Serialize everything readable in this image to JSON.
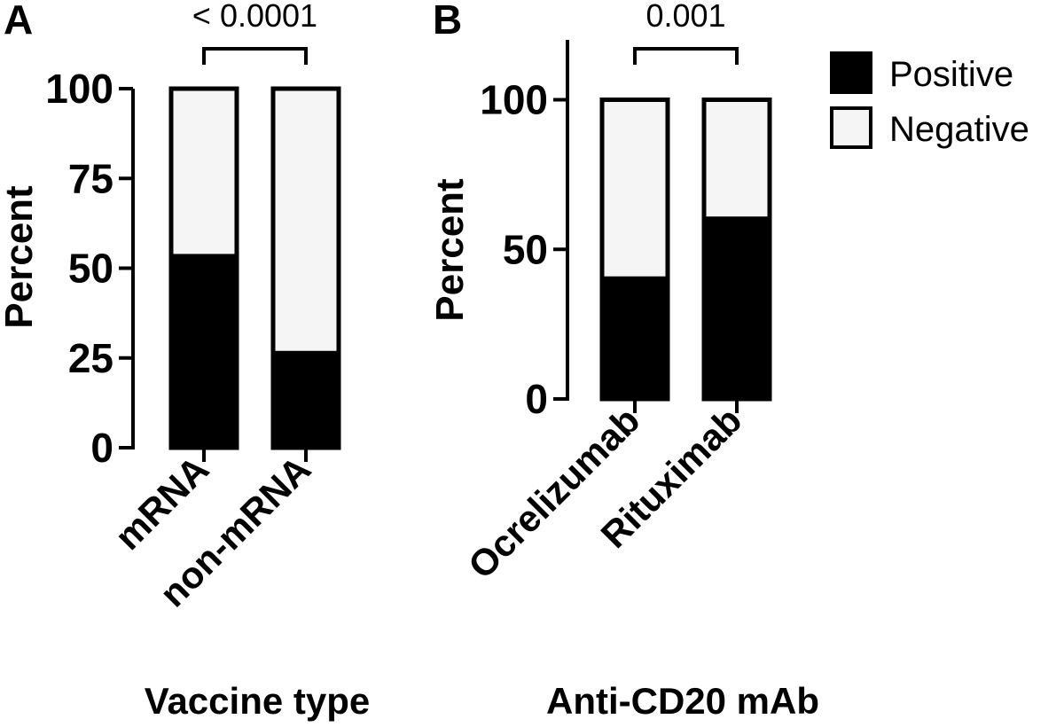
{
  "colors": {
    "positive": "#000000",
    "negative": "#f5f5f5",
    "stroke": "#000000"
  },
  "legend": [
    {
      "label": "Positive",
      "color": "#000000"
    },
    {
      "label": "Negative",
      "color": "#f5f5f5"
    }
  ],
  "chart_data": [
    {
      "panel": "A",
      "type": "bar",
      "stacked": true,
      "categories": [
        "mRNA",
        "non-mRNA"
      ],
      "series": [
        {
          "name": "Positive",
          "values": [
            54,
            27
          ]
        },
        {
          "name": "Negative",
          "values": [
            46,
            73
          ]
        }
      ],
      "ylabel": "Percent",
      "xlabel": "Vaccine type",
      "ylim": [
        0,
        100
      ],
      "yticks": [
        0,
        25,
        50,
        75,
        100
      ],
      "annotation": {
        "text": "< 0.0001",
        "between": [
          0,
          1
        ]
      }
    },
    {
      "panel": "B",
      "type": "bar",
      "stacked": true,
      "categories": [
        "Ocrelizumab",
        "Rituximab"
      ],
      "series": [
        {
          "name": "Positive",
          "values": [
            41,
            61
          ]
        },
        {
          "name": "Negative",
          "values": [
            59,
            39
          ]
        }
      ],
      "ylabel": "Percent",
      "xlabel": "Anti-CD20 mAb",
      "ylim": [
        0,
        120
      ],
      "yticks": [
        0,
        50,
        100
      ],
      "annotation": {
        "text": "0.001",
        "between": [
          0,
          1
        ]
      }
    }
  ]
}
